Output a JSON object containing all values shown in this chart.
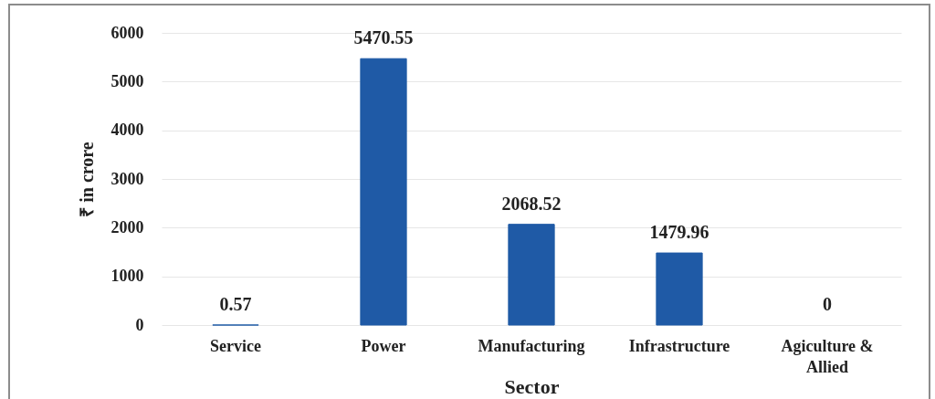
{
  "chart_data": {
    "type": "bar",
    "xlabel": "Sector",
    "ylabel": "₹ in crore",
    "categories": [
      "Service",
      "Power",
      "Manufacturing",
      "Infrastructure",
      "Agiculture & Allied"
    ],
    "values": [
      0.57,
      5470.55,
      2068.52,
      1479.96,
      0
    ],
    "color": "#1f5aa6",
    "ylim": [
      0,
      6000
    ],
    "yticks": [
      0,
      1000,
      2000,
      3000,
      4000,
      5000,
      6000
    ],
    "grid": "y",
    "data_labels": true
  }
}
